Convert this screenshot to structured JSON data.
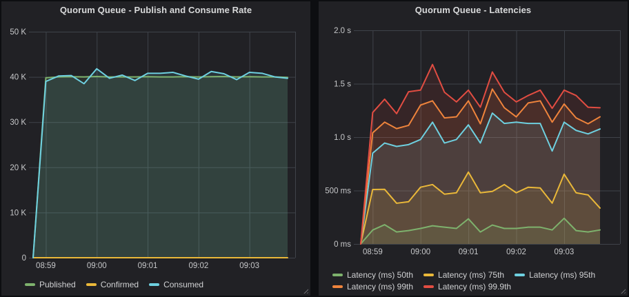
{
  "chart_data": [
    {
      "type": "area",
      "title": "Quorum Queue - Publish and Consume Rate",
      "xlabel": "",
      "ylabel": "",
      "ylim": [
        0,
        50000
      ],
      "grid": true,
      "legend_position": "bottom",
      "x_ticks": [
        {
          "label": "08:59",
          "index": 1
        },
        {
          "label": "09:00",
          "index": 5
        },
        {
          "label": "09:01",
          "index": 9
        },
        {
          "label": "09:02",
          "index": 13
        },
        {
          "label": "09:03",
          "index": 17
        }
      ],
      "y_ticks": [
        {
          "label": "0",
          "value": 0
        },
        {
          "label": "10 K",
          "value": 10000
        },
        {
          "label": "20 K",
          "value": 20000
        },
        {
          "label": "30 K",
          "value": 30000
        },
        {
          "label": "40 K",
          "value": 40000
        },
        {
          "label": "50 K",
          "value": 50000
        }
      ],
      "series": [
        {
          "name": "Published",
          "color": "#7EB26D",
          "values": [
            0,
            39800,
            40000,
            40050,
            40000,
            40100,
            40000,
            40000,
            40000,
            40050,
            40000,
            40000,
            40050,
            40000,
            40050,
            40100,
            40000,
            40050,
            40000,
            40000,
            39900
          ]
        },
        {
          "name": "Confirmed",
          "color": "#EAB839",
          "values": [
            0,
            0,
            0,
            0,
            0,
            0,
            0,
            0,
            0,
            0,
            0,
            0,
            0,
            0,
            0,
            0,
            0,
            0,
            0,
            0,
            0
          ]
        },
        {
          "name": "Consumed",
          "color": "#6ED0E0",
          "values": [
            0,
            39000,
            40200,
            40300,
            38500,
            41800,
            39700,
            40400,
            39200,
            40800,
            40800,
            41000,
            40200,
            39500,
            41200,
            40700,
            39400,
            41000,
            40800,
            40000,
            39700
          ]
        }
      ]
    },
    {
      "type": "area",
      "title": "Quorum Queue - Latencies",
      "xlabel": "",
      "ylabel": "",
      "ylim": [
        0,
        2000
      ],
      "grid": true,
      "legend_position": "bottom",
      "x_ticks": [
        {
          "label": "08:59",
          "index": 1
        },
        {
          "label": "09:00",
          "index": 5
        },
        {
          "label": "09:01",
          "index": 9
        },
        {
          "label": "09:02",
          "index": 13
        },
        {
          "label": "09:03",
          "index": 17
        }
      ],
      "y_ticks": [
        {
          "label": "0 ms",
          "value": 0
        },
        {
          "label": "500 ms",
          "value": 500
        },
        {
          "label": "1.0 s",
          "value": 1000
        },
        {
          "label": "1.5 s",
          "value": 1500
        },
        {
          "label": "2.0 s",
          "value": 2000
        }
      ],
      "series": [
        {
          "name": "Latency (ms) 50th",
          "color": "#7EB26D",
          "values": [
            0,
            130,
            180,
            112,
            125,
            145,
            170,
            157,
            145,
            235,
            112,
            177,
            145,
            145,
            157,
            157,
            131,
            240,
            125,
            112,
            131
          ]
        },
        {
          "name": "Latency (ms) 75th",
          "color": "#EAB839",
          "values": [
            0,
            510,
            511,
            381,
            395,
            531,
            556,
            466,
            479,
            673,
            479,
            492,
            556,
            479,
            531,
            524,
            382,
            653,
            479,
            459,
            336
          ]
        },
        {
          "name": "Latency (ms) 95th",
          "color": "#6ED0E0",
          "values": [
            0,
            850,
            945,
            913,
            930,
            978,
            1140,
            945,
            978,
            1115,
            945,
            1225,
            1128,
            1140,
            1128,
            1128,
            870,
            1140,
            1063,
            1030,
            1076
          ]
        },
        {
          "name": "Latency (ms) 99th",
          "color": "#EF843C",
          "values": [
            0,
            1040,
            1140,
            1080,
            1110,
            1300,
            1340,
            1180,
            1190,
            1340,
            1125,
            1450,
            1275,
            1190,
            1320,
            1340,
            1140,
            1310,
            1180,
            1125,
            1190
          ]
        },
        {
          "name": "Latency (ms) 99.9th",
          "color": "#E24D42",
          "values": [
            0,
            1230,
            1355,
            1220,
            1425,
            1440,
            1680,
            1420,
            1330,
            1440,
            1280,
            1610,
            1420,
            1330,
            1390,
            1440,
            1270,
            1440,
            1390,
            1280,
            1275
          ]
        }
      ]
    }
  ],
  "colors": {
    "panel_background": "#212125",
    "page_background": "#0d0e11",
    "grid": "#3f434a",
    "tick_text": "#c7c8ca",
    "title_text": "#d8d9da"
  }
}
